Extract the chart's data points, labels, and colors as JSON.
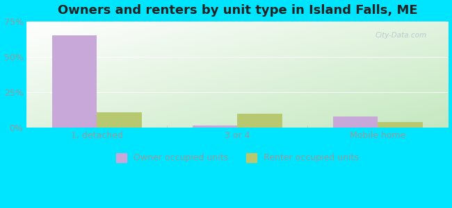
{
  "title": "Owners and renters by unit type in Island Falls, ME",
  "categories": [
    "1, detached",
    "3 or 4",
    "Mobile home"
  ],
  "owner_values": [
    65.0,
    1.5,
    8.0
  ],
  "renter_values": [
    11.0,
    10.0,
    4.0
  ],
  "owner_color": "#c8a8d8",
  "renter_color": "#b8c870",
  "ylim": [
    0,
    75
  ],
  "yticks": [
    0,
    25,
    50,
    75
  ],
  "ytick_labels": [
    "0%",
    "25%",
    "50%",
    "75%"
  ],
  "background_color": "#00e5ff",
  "legend_owner": "Owner occupied units",
  "legend_renter": "Renter occupied units",
  "watermark": "City-Data.com",
  "bar_width": 0.32,
  "title_fontsize": 13,
  "tick_fontsize": 9,
  "legend_fontsize": 9,
  "grid_color": "#ffffff",
  "tick_color": "#999999"
}
